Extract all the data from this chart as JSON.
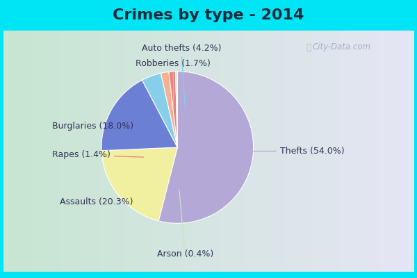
{
  "title": "Crimes by type - 2014",
  "labels": [
    "Thefts",
    "Assaults",
    "Burglaries",
    "Auto thefts",
    "Robberies",
    "Rapes",
    "Arson"
  ],
  "display_labels": [
    "Thefts (54.0%)",
    "Assaults (20.3%)",
    "Burglaries (18.0%)",
    "Auto thefts (4.2%)",
    "Robberies (1.7%)",
    "Rapes (1.4%)",
    "Arson (0.4%)"
  ],
  "percentages": [
    54.0,
    20.3,
    18.0,
    4.2,
    1.7,
    1.4,
    0.4
  ],
  "colors": [
    "#b3a8d6",
    "#f0f0a0",
    "#6b7fd4",
    "#87ceeb",
    "#f4b090",
    "#e88080",
    "#c8e6c0"
  ],
  "bg_cyan": "#00e5f5",
  "bg_left": "#b8ddc8",
  "bg_right": "#d8d8f0",
  "title_fontsize": 16,
  "label_fontsize": 9,
  "watermark": "City-Data.com"
}
